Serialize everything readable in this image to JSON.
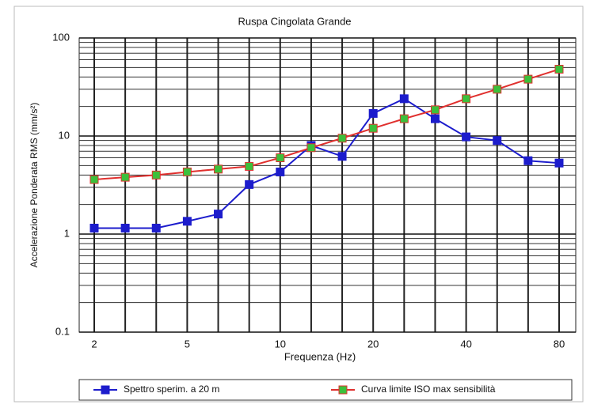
{
  "chart_data": {
    "type": "line",
    "title": "Ruspa Cingolata Grande",
    "xlabel": "Frequenza (Hz)",
    "ylabel": "Accelerazione Ponderata RMS (mm/s²)",
    "categories": [
      "2",
      null,
      null,
      "5",
      null,
      null,
      "10",
      null,
      null,
      "20",
      null,
      null,
      "40",
      null,
      null,
      "80"
    ],
    "series": [
      {
        "name": "Spettro sperim. a 20 m",
        "color": "#1c1ccc",
        "marker_color": "#1c1ccc",
        "values": [
          1.15,
          1.15,
          1.15,
          1.35,
          1.6,
          3.2,
          4.3,
          8,
          6.2,
          17,
          24,
          15,
          9.8,
          9,
          5.6,
          5.3
        ]
      },
      {
        "name": "Curva limite ISO max sensibilità",
        "color": "#e0302e",
        "marker_color": "#3cc03c",
        "values": [
          3.6,
          3.8,
          4.0,
          4.3,
          4.6,
          4.9,
          6.0,
          7.6,
          9.5,
          12,
          15,
          18.5,
          24,
          30,
          38,
          48
        ]
      }
    ],
    "ylim": [
      0.1,
      100
    ],
    "yticks": [
      0.1,
      1,
      10,
      100
    ],
    "yminor": [
      0.2,
      0.3,
      0.4,
      0.5,
      0.6,
      0.7,
      0.8,
      0.9,
      2,
      3,
      4,
      5,
      6,
      7,
      8,
      9,
      20,
      30,
      40,
      50,
      60,
      70,
      80,
      90
    ],
    "log_y": true,
    "grid": true,
    "legend": "bottom"
  }
}
